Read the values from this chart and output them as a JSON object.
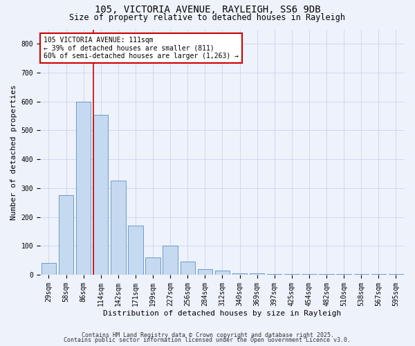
{
  "title1": "105, VICTORIA AVENUE, RAYLEIGH, SS6 9DB",
  "title2": "Size of property relative to detached houses in Rayleigh",
  "xlabel": "Distribution of detached houses by size in Rayleigh",
  "ylabel": "Number of detached properties",
  "categories": [
    "29sqm",
    "58sqm",
    "86sqm",
    "114sqm",
    "142sqm",
    "171sqm",
    "199sqm",
    "227sqm",
    "256sqm",
    "284sqm",
    "312sqm",
    "340sqm",
    "369sqm",
    "397sqm",
    "425sqm",
    "454sqm",
    "482sqm",
    "510sqm",
    "538sqm",
    "567sqm",
    "595sqm"
  ],
  "values": [
    40,
    275,
    600,
    555,
    325,
    170,
    60,
    100,
    45,
    20,
    15,
    5,
    5,
    2,
    2,
    2,
    2,
    2,
    2,
    2,
    2
  ],
  "bar_color": "#c5d9f0",
  "bar_edge_color": "#5a8fc0",
  "property_line_color": "#cc0000",
  "annotation_text": "105 VICTORIA AVENUE: 111sqm\n← 39% of detached houses are smaller (811)\n60% of semi-detached houses are larger (1,263) →",
  "annotation_box_color": "#ffffff",
  "annotation_box_edge_color": "#cc0000",
  "ylim": [
    0,
    850
  ],
  "yticks": [
    0,
    100,
    200,
    300,
    400,
    500,
    600,
    700,
    800
  ],
  "footnote1": "Contains HM Land Registry data © Crown copyright and database right 2025.",
  "footnote2": "Contains public sector information licensed under the Open Government Licence v3.0.",
  "bg_color": "#eef2fb",
  "grid_color": "#c8d4ee",
  "title_fontsize": 10,
  "subtitle_fontsize": 8.5,
  "axis_label_fontsize": 8,
  "tick_fontsize": 7,
  "annotation_fontsize": 7,
  "footnote_fontsize": 6
}
